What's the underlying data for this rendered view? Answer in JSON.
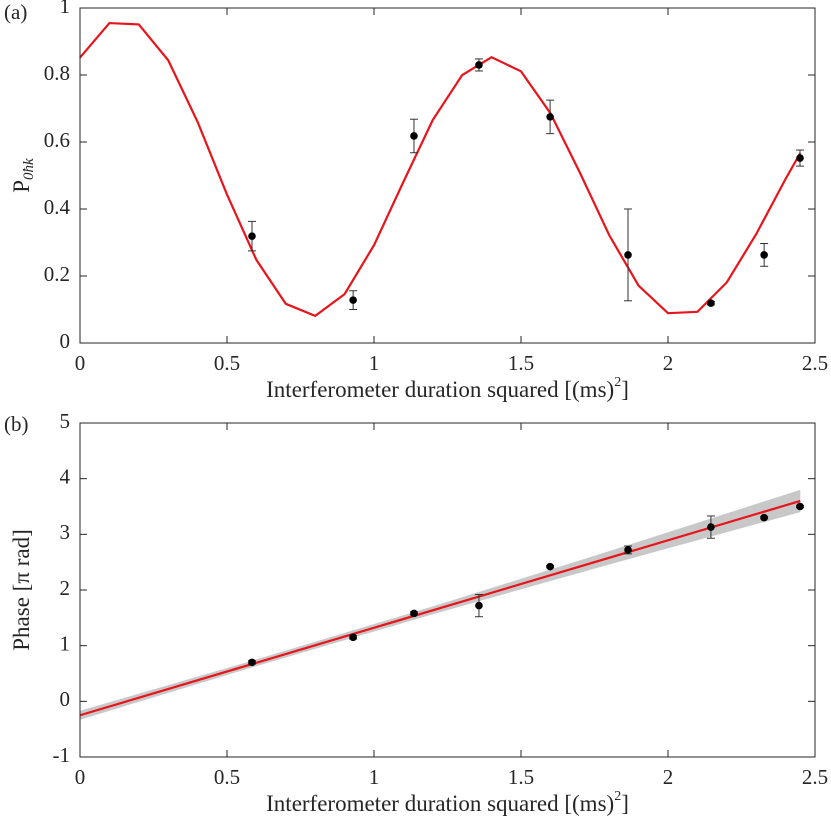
{
  "chart_data": [
    {
      "type": "scatter",
      "panel_label": "(a)",
      "xlabel": {
        "text": "Interferometer duration squared [(ms)",
        "sup": "2",
        "tail": "]"
      },
      "ylabel": {
        "text": "P",
        "sub": "0ħk"
      },
      "xlim": [
        0,
        2.5
      ],
      "ylim": [
        0,
        1
      ],
      "xticks": [
        0,
        0.5,
        1,
        1.5,
        2,
        2.5
      ],
      "yticks": [
        0,
        0.2,
        0.4,
        0.6,
        0.8,
        1
      ],
      "points": {
        "color": "#000000",
        "x": [
          0.585,
          0.929,
          1.136,
          1.357,
          1.599,
          1.864,
          2.146,
          2.327,
          2.449
        ],
        "values": [
          0.319,
          0.128,
          0.618,
          0.83,
          0.675,
          0.263,
          0.119,
          0.263,
          0.552
        ],
        "errors": [
          0.044,
          0.028,
          0.05,
          0.018,
          0.05,
          0.137,
          0.005,
          0.034,
          0.024
        ]
      },
      "fit": {
        "color": "#e8141b",
        "x": [
          0,
          0.1,
          0.2,
          0.3,
          0.4,
          0.5,
          0.6,
          0.7,
          0.8,
          0.9,
          1,
          1.1,
          1.2,
          1.3,
          1.4,
          1.5,
          1.6,
          1.7,
          1.8,
          1.9,
          2,
          2.1,
          2.2,
          2.3,
          2.4,
          2.45
        ],
        "values": [
          0.852,
          0.955,
          0.951,
          0.844,
          0.66,
          0.443,
          0.248,
          0.117,
          0.081,
          0.146,
          0.292,
          0.481,
          0.666,
          0.8,
          0.853,
          0.811,
          0.686,
          0.509,
          0.322,
          0.171,
          0.089,
          0.093,
          0.181,
          0.325,
          0.49,
          0.567
        ]
      }
    },
    {
      "type": "scatter",
      "panel_label": "(b)",
      "xlabel": {
        "text": "Interferometer duration squared [(ms)",
        "sup": "2",
        "tail": "]"
      },
      "ylabel": {
        "text": "Phase [π rad]"
      },
      "xlim": [
        0,
        2.5
      ],
      "ylim": [
        -1,
        5
      ],
      "xticks": [
        0,
        0.5,
        1,
        1.5,
        2,
        2.5
      ],
      "yticks": [
        -1,
        0,
        1,
        2,
        3,
        4,
        5
      ],
      "band": {
        "color": "#c8c8c8",
        "x": [
          0,
          0.6,
          1.2,
          1.8,
          2.45
        ],
        "lower": [
          -0.33,
          0.633,
          1.565,
          2.458,
          3.4
        ],
        "upper": [
          -0.17,
          0.753,
          1.705,
          2.698,
          3.8
        ]
      },
      "fit": {
        "color": "#e8141b",
        "x": [
          0,
          2.45
        ],
        "values": [
          -0.25,
          3.6
        ]
      },
      "points": {
        "color": "#000000",
        "x": [
          0.585,
          0.929,
          1.136,
          1.357,
          1.599,
          1.864,
          2.146,
          2.327,
          2.449
        ],
        "values": [
          0.7,
          1.15,
          1.58,
          1.72,
          2.42,
          2.72,
          3.13,
          3.3,
          3.5
        ],
        "errors": [
          0.03,
          0.03,
          0.03,
          0.2,
          0.02,
          0.07,
          0.2,
          0.02,
          0.02
        ]
      }
    }
  ]
}
